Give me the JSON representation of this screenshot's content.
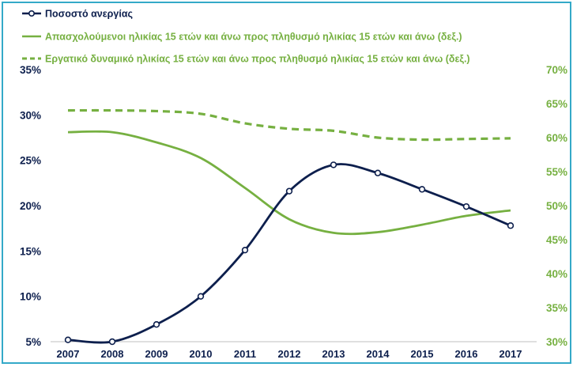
{
  "chart_data": {
    "type": "line",
    "categories": [
      "2007",
      "2008",
      "2009",
      "2010",
      "2011",
      "2012",
      "2013",
      "2014",
      "2015",
      "2016",
      "2017"
    ],
    "y_left": {
      "min": 5,
      "max": 35,
      "step": 5,
      "tick_labels": [
        "5%",
        "10%",
        "15%",
        "20%",
        "25%",
        "30%",
        "35%"
      ]
    },
    "y_right": {
      "min": 30,
      "max": 70,
      "step": 5,
      "tick_labels": [
        "30%",
        "35%",
        "40%",
        "45%",
        "50%",
        "55%",
        "60%",
        "65%",
        "70%"
      ]
    },
    "legend_position": "top-left",
    "grid": false,
    "series": [
      {
        "name": "Ποσοστό ανεργίας",
        "axis": "left",
        "style": "solid-markers",
        "color": "#0d1f4d",
        "values": [
          5.2,
          5.0,
          6.9,
          10.0,
          15.1,
          21.6,
          24.5,
          23.6,
          21.8,
          19.9,
          17.8
        ]
      },
      {
        "name": "Απασχολούμενοι ηλικίας 15 ετών και άνω προς πληθυσμό ηλικίας 15 ετών και άνω (δεξ.)",
        "axis": "right",
        "style": "solid",
        "color": "#76b041",
        "values": [
          60.8,
          60.8,
          59.3,
          57.0,
          52.6,
          48.0,
          46.0,
          46.1,
          47.2,
          48.5,
          49.3
        ]
      },
      {
        "name": "Εργατικό δυναμικό ηλικίας 15 ετών και άνω προς πληθυσμό ηλικίας 15 ετών και άνω (δεξ.)",
        "axis": "right",
        "style": "dashed",
        "color": "#76b041",
        "values": [
          64.0,
          64.0,
          63.9,
          63.5,
          62.1,
          61.3,
          61.0,
          60.0,
          59.7,
          59.8,
          59.9
        ]
      }
    ]
  }
}
